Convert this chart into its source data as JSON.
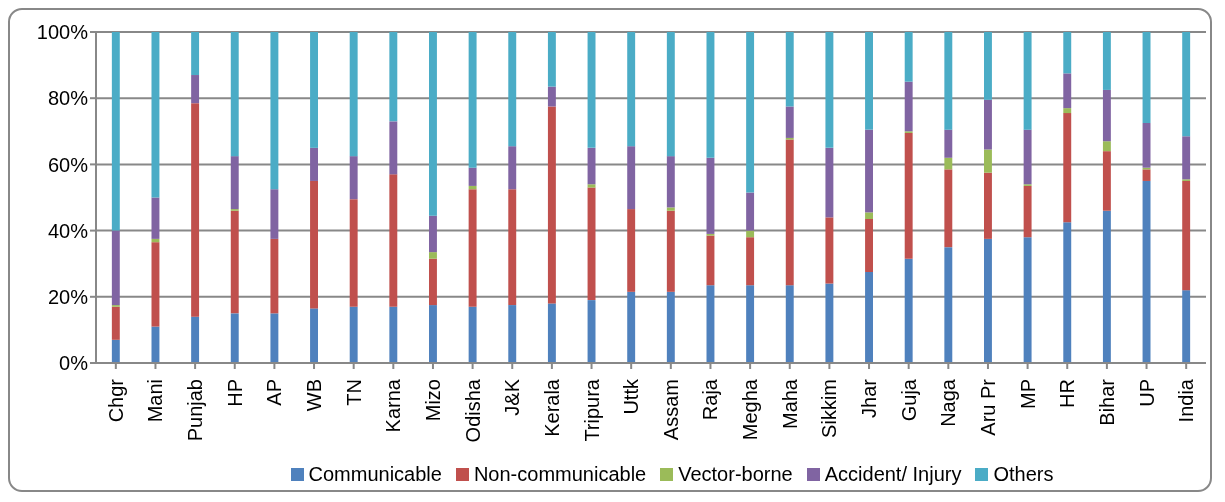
{
  "chart_data": {
    "type": "bar",
    "stacked": true,
    "categories": [
      "Chgr",
      "Mani",
      "Punjab",
      "HP",
      "AP",
      "WB",
      "TN",
      "Karna",
      "Mizo",
      "Odisha",
      "J&K",
      "Kerala",
      "Tripura",
      "Uttk",
      "Assam",
      "Raja",
      "Megha",
      "Maha",
      "Sikkim",
      "Jhar",
      "Guja",
      "Naga",
      "Aru Pr",
      "MP",
      "HR",
      "Bihar",
      "UP",
      "India"
    ],
    "series": [
      {
        "name": "Communicable",
        "color": "#4f81bd",
        "values": [
          7,
          11,
          14,
          15,
          15,
          16.5,
          17,
          17,
          17.5,
          17,
          17.5,
          18,
          19,
          21.5,
          21.5,
          23.5,
          23.5,
          23.5,
          24,
          27.5,
          31.5,
          35,
          37.5,
          38,
          42.5,
          46,
          55,
          22
        ]
      },
      {
        "name": "Non-communicable",
        "color": "#c0504d",
        "values": [
          10,
          25.5,
          64.5,
          31,
          22.5,
          38.5,
          32.5,
          40,
          14,
          35.5,
          35,
          59.5,
          34,
          25,
          24.5,
          15,
          14.5,
          44,
          20,
          16,
          38,
          23.5,
          20,
          15.5,
          33,
          18,
          3.5,
          33
        ]
      },
      {
        "name": "Vector-borne",
        "color": "#9bbb59",
        "values": [
          0.5,
          1,
          0,
          0.5,
          0,
          0,
          0,
          0,
          2,
          1,
          0,
          0,
          1,
          0,
          1,
          0.5,
          2,
          0.5,
          0,
          2,
          0.5,
          3.5,
          7,
          0.5,
          1.5,
          3,
          0.5,
          0.5
        ]
      },
      {
        "name": "Accident/ Injury",
        "color": "#8064a2",
        "values": [
          22.5,
          12.5,
          8.5,
          16,
          15,
          10,
          13,
          16,
          11,
          5.5,
          13,
          6,
          11,
          19,
          15.5,
          23,
          11.5,
          9.5,
          21,
          25,
          15,
          8.5,
          15,
          16.5,
          10.5,
          15.5,
          13.5,
          13
        ]
      },
      {
        "name": "Others",
        "color": "#4bacc6",
        "values": [
          60,
          50,
          13,
          37.5,
          47.5,
          35,
          37.5,
          27,
          55.5,
          41,
          34.5,
          16.5,
          35,
          34.5,
          37.5,
          38,
          48.5,
          22.5,
          35,
          29.5,
          15,
          29.5,
          20.5,
          29.5,
          12.5,
          17.5,
          27.5,
          31.5
        ]
      }
    ],
    "ylim": [
      0,
      100
    ],
    "yticks": [
      {
        "value": 0,
        "label": "0%"
      },
      {
        "value": 20,
        "label": "20%"
      },
      {
        "value": 40,
        "label": "40%"
      },
      {
        "value": 60,
        "label": "60%"
      },
      {
        "value": 80,
        "label": "80%"
      },
      {
        "value": 100,
        "label": "100%"
      }
    ],
    "grid": "y",
    "legend": "bottom"
  }
}
